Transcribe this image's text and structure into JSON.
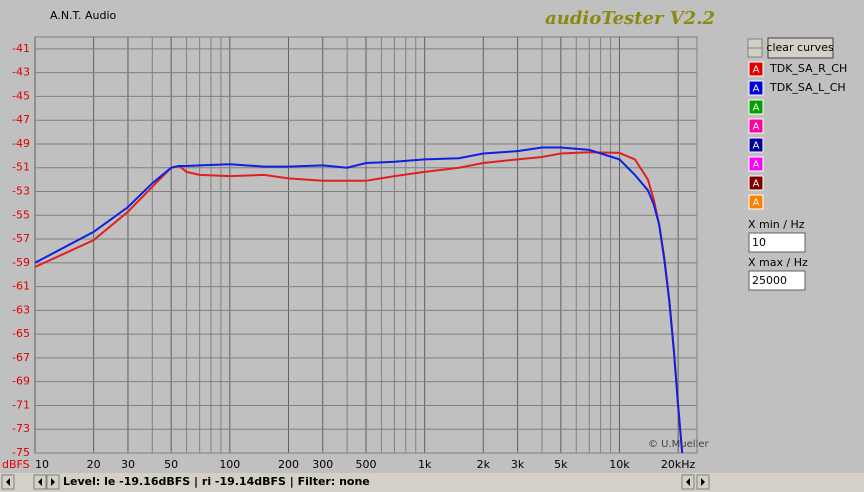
{
  "app": {
    "vendor": "A.N.T. Audio",
    "product": "audioTester V2.2",
    "copyright": "© U.Mueller",
    "clear_button": "clear curves",
    "xmin_label": "X min / Hz",
    "xmax_label": "X max / Hz",
    "status": "Level: le -19.16dBFS | ri -19.14dBFS | Filter: none",
    "curve_slots": [
      {
        "label": "A",
        "color": "#e00000"
      },
      {
        "label": "A",
        "color": "#0000e0"
      },
      {
        "label": "A",
        "color": "#00a000"
      },
      {
        "label": "A",
        "color": "#ff00a0"
      },
      {
        "label": "A",
        "color": "#0000a0"
      },
      {
        "label": "A",
        "color": "#ff00ff"
      },
      {
        "label": "A",
        "color": "#800000"
      },
      {
        "label": "A",
        "color": "#ff8000"
      }
    ]
  },
  "chart_data": {
    "type": "line",
    "y_label": "dBFS",
    "xscale": "log",
    "grid": true,
    "xlim": [
      10,
      25000
    ],
    "ylim": [
      -75,
      -40
    ],
    "xticks": [
      10,
      20,
      30,
      50,
      100,
      200,
      300,
      500,
      {
        "value": 1000,
        "label": "1k"
      },
      {
        "value": 2000,
        "label": "2k"
      },
      {
        "value": 3000,
        "label": "3k"
      },
      {
        "value": 5000,
        "label": "5k"
      },
      {
        "value": 10000,
        "label": "10k"
      },
      {
        "value": 20000,
        "label": "20kHz"
      }
    ],
    "xgrid": [
      40,
      60,
      70,
      80,
      90,
      400,
      600,
      700,
      800,
      900,
      4000,
      6000,
      7000,
      8000,
      9000
    ],
    "yticks": [
      -41,
      -43,
      -45,
      -47,
      -49,
      -51,
      -53,
      -55,
      -57,
      -59,
      -61,
      -63,
      -65,
      -67,
      -69,
      -71,
      -73,
      -75
    ],
    "x": [
      10,
      20,
      30,
      40,
      50,
      55,
      60,
      70,
      100,
      150,
      200,
      300,
      400,
      500,
      700,
      1000,
      1500,
      2000,
      3000,
      4000,
      5000,
      7000,
      10000,
      12000,
      14000,
      15000,
      16000,
      17000,
      18000,
      19000,
      20000,
      21000
    ],
    "series": [
      {
        "name": "TDK_SA_R_CH",
        "color": "#e02020",
        "values": [
          -59.35,
          -57.1,
          -54.7,
          -52.6,
          -51.0,
          -50.85,
          -51.35,
          -51.6,
          -51.7,
          -51.6,
          -51.9,
          -52.1,
          -52.1,
          -52.1,
          -51.7,
          -51.35,
          -51.0,
          -50.6,
          -50.3,
          -50.1,
          -49.8,
          -49.7,
          -49.75,
          -50.3,
          -52.0,
          -53.7,
          -55.8,
          -58.6,
          -62.1,
          -66.3,
          -71.0,
          -75
        ]
      },
      {
        "name": "TDK_SA_L_CH",
        "color": "#1020e0",
        "values": [
          -59.0,
          -56.4,
          -54.3,
          -52.3,
          -51.0,
          -50.85,
          -50.85,
          -50.8,
          -50.7,
          -50.9,
          -50.9,
          -50.8,
          -51.0,
          -50.6,
          -50.5,
          -50.3,
          -50.2,
          -49.8,
          -49.6,
          -49.3,
          -49.3,
          -49.5,
          -50.3,
          -51.6,
          -52.9,
          -54.1,
          -55.8,
          -58.8,
          -62.1,
          -66.3,
          -71.0,
          -75
        ]
      }
    ]
  }
}
